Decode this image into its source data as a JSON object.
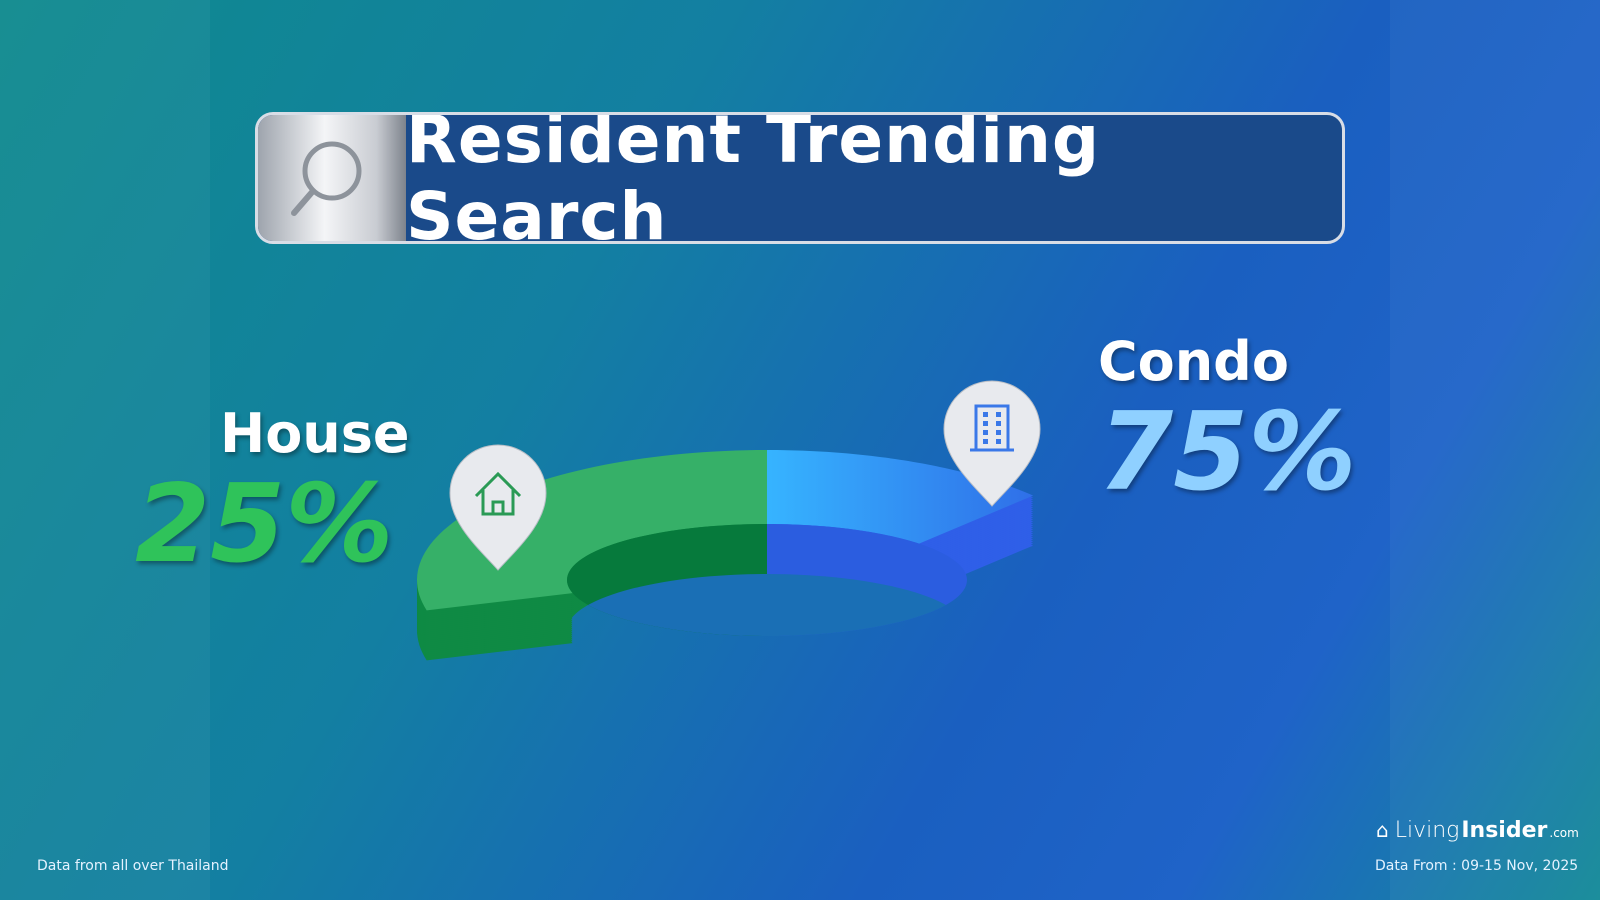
{
  "header": {
    "title": "Resident Trending Search",
    "icon": "search-icon"
  },
  "chart_data": {
    "type": "pie",
    "variant": "3d-donut",
    "categories": [
      "House",
      "Condo"
    ],
    "values": [
      25,
      75
    ],
    "labels": [
      "25%",
      "75%"
    ],
    "colors": {
      "House": "#2fae5e",
      "Condo": "#3a86f0"
    },
    "icons": {
      "House": "house-pin-icon",
      "Condo": "building-pin-icon"
    }
  },
  "footer": {
    "left": "Data from all over Thailand",
    "brand_light": "Living",
    "brand_bold": "Insider",
    "brand_suffix": ".com",
    "date": "Data From : 09-15 Nov, 2025"
  }
}
